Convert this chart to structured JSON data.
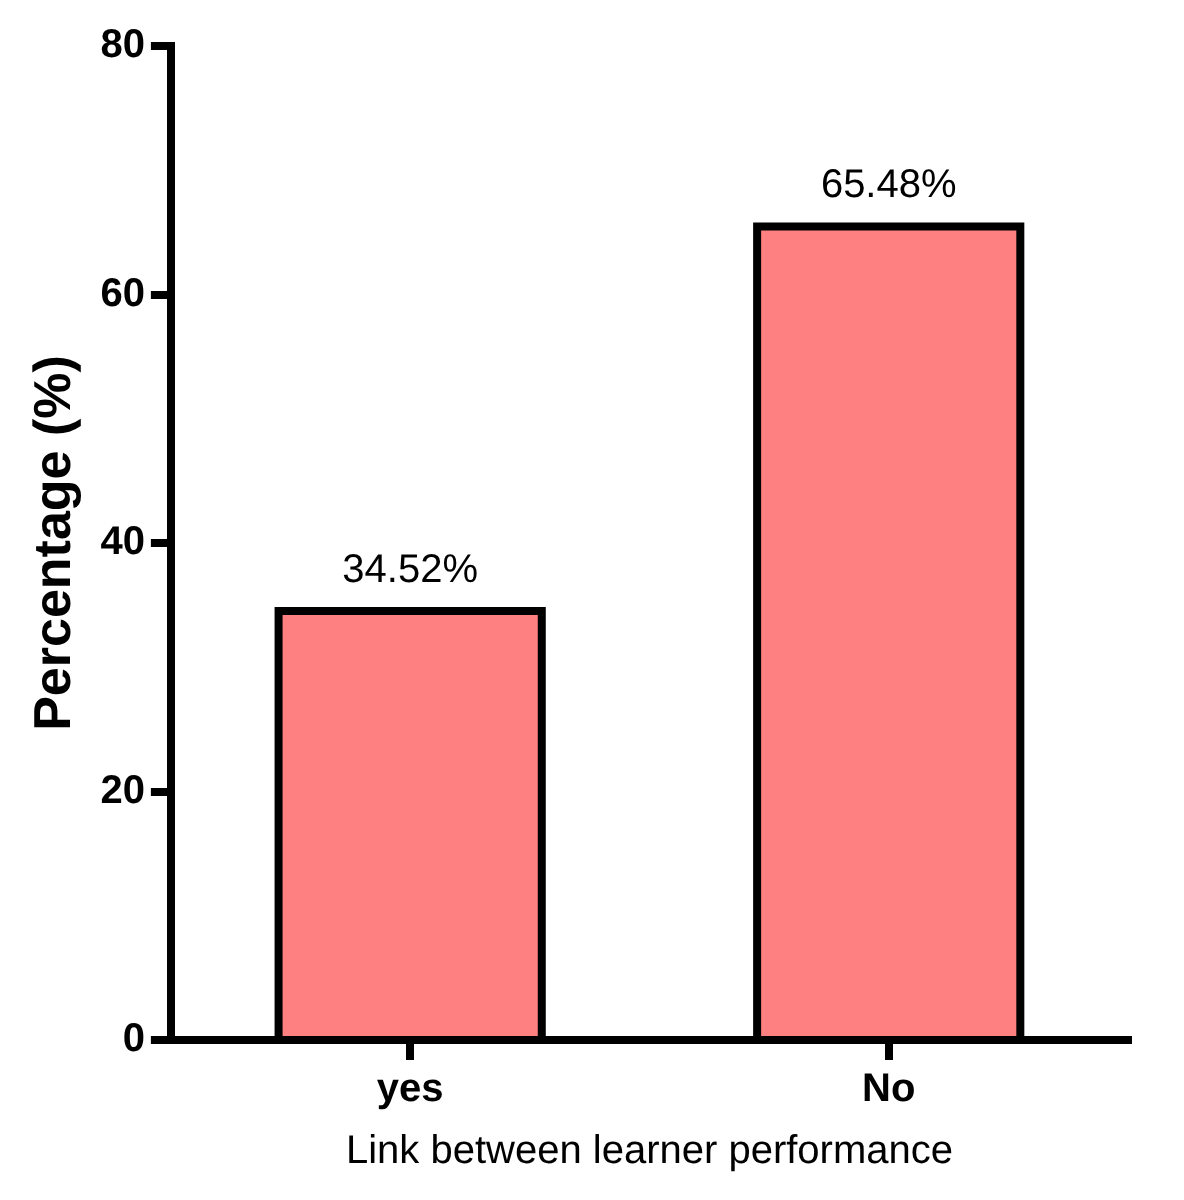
{
  "chart_data": {
    "type": "bar",
    "xlabel": "Link between learner performance",
    "ylabel": "Percentage (%)",
    "categories": [
      "yes",
      "No"
    ],
    "values": [
      34.52,
      65.48
    ],
    "value_labels": [
      "34.52%",
      "65.48%"
    ],
    "color": "#ff8080",
    "ylim": [
      0,
      80
    ],
    "yticks": [
      0,
      20,
      40,
      60,
      80
    ],
    "grid": false,
    "legend": false
  }
}
